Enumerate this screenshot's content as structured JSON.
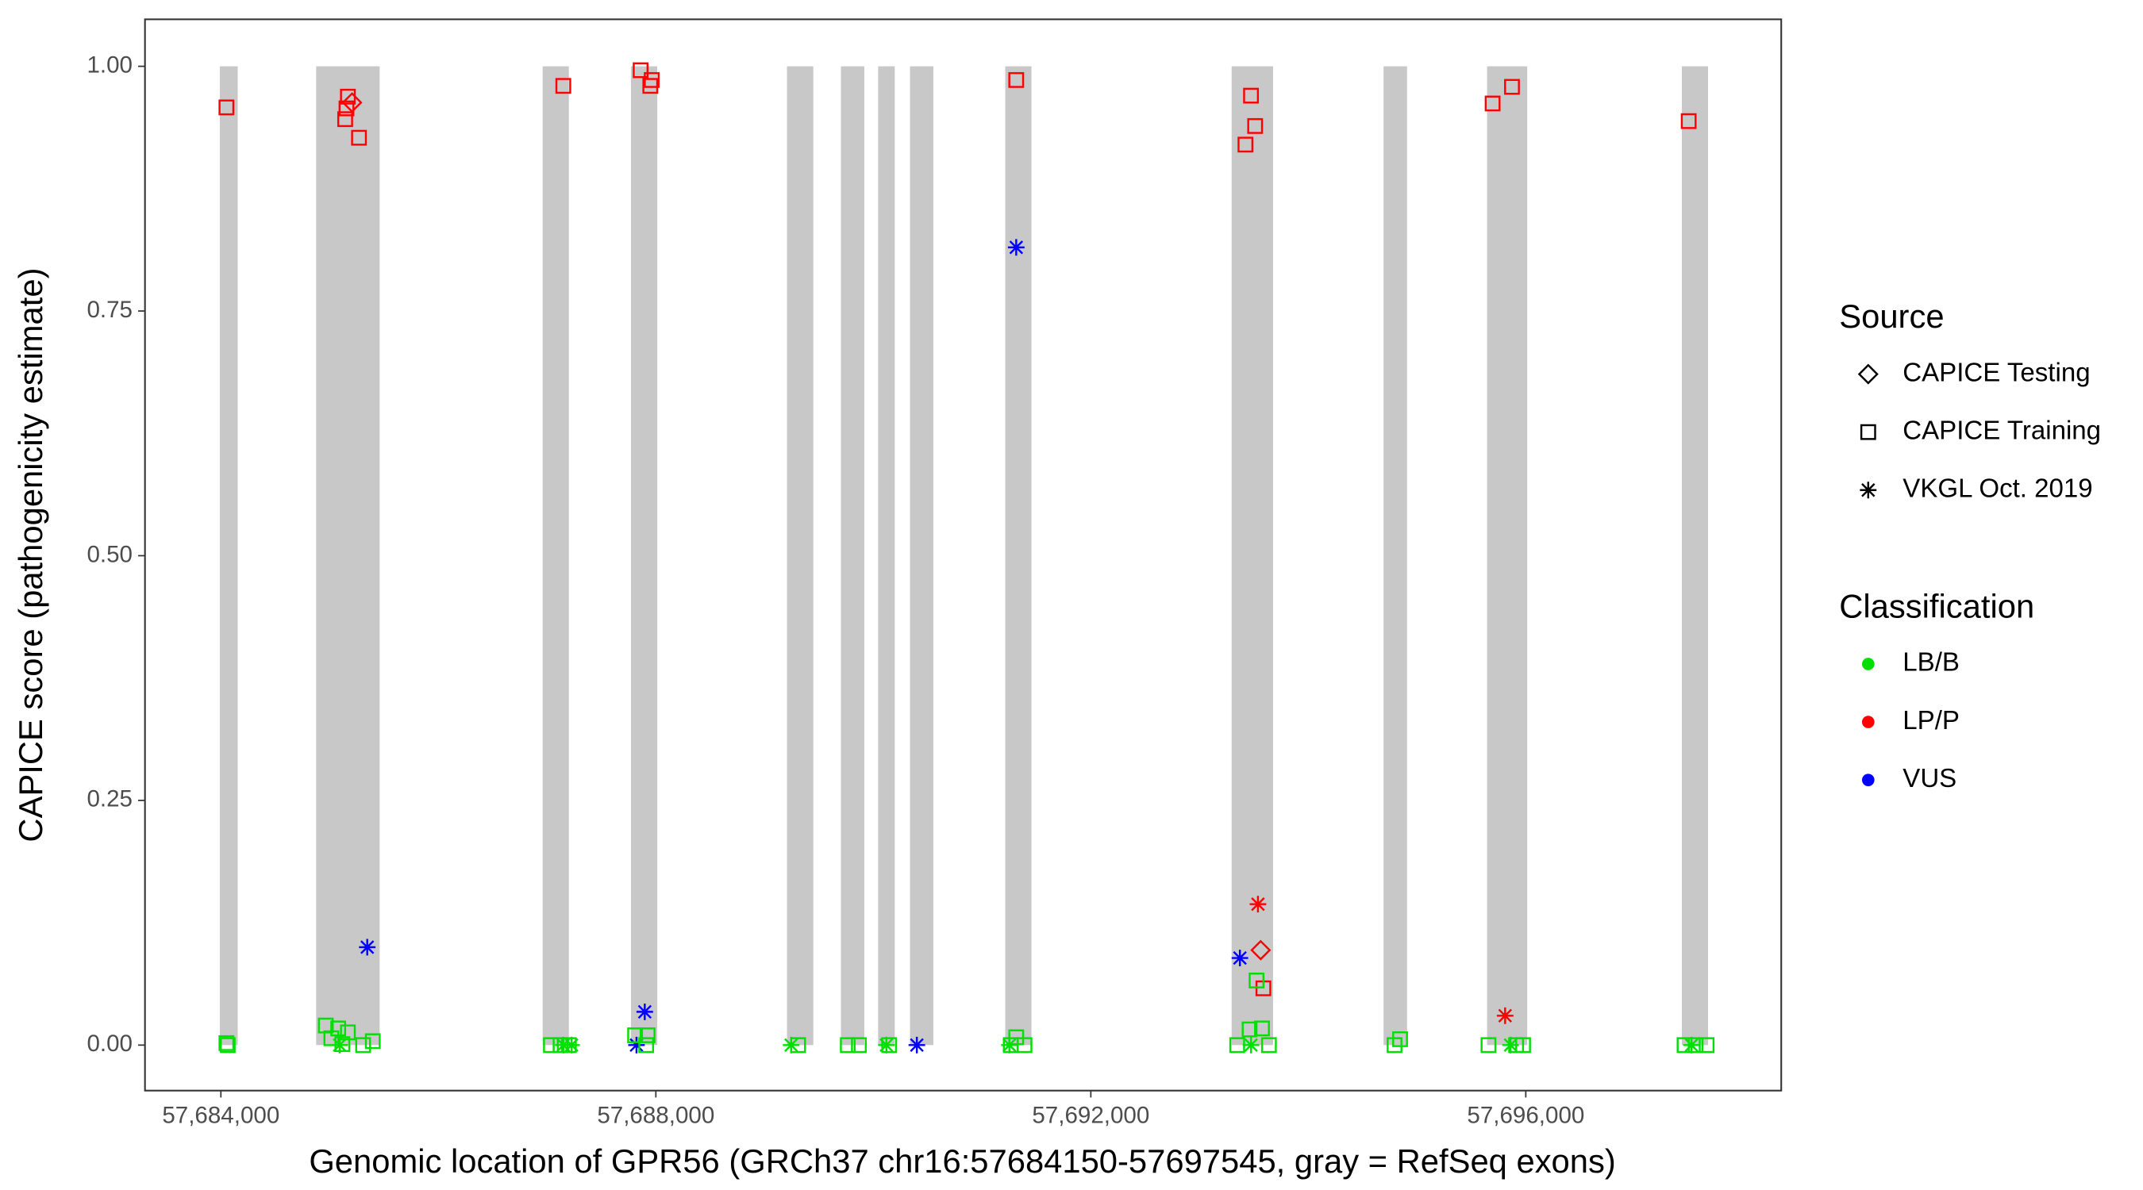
{
  "chart_data": {
    "type": "scatter",
    "x_label": "Genomic location of GPR56 (GRCh37 chr16:57684150-57697545, gray = RefSeq exons)",
    "y_label": "CAPICE score (pathogenicity estimate)",
    "xlim": [
      57683302,
      57698349
    ],
    "ylim": [
      -0.0465,
      1.048
    ],
    "xticks": [
      {
        "value": 57684000,
        "label": "57,684,000"
      },
      {
        "value": 57688000,
        "label": "57,688,000"
      },
      {
        "value": 57692000,
        "label": "57,692,000"
      },
      {
        "value": 57696000,
        "label": "57,696,000"
      }
    ],
    "yticks": [
      {
        "value": 0,
        "label": "0.00"
      },
      {
        "value": 0.25,
        "label": "0.25"
      },
      {
        "value": 0.5,
        "label": "0.50"
      },
      {
        "value": 0.75,
        "label": "0.75"
      },
      {
        "value": 1,
        "label": "1.00"
      }
    ],
    "exon_color": "#c8c8c8",
    "exons": [
      [
        57683990,
        57684155
      ],
      [
        57684876,
        57685460
      ],
      [
        57686959,
        57687200
      ],
      [
        57687771,
        57688013
      ],
      [
        57689206,
        57689448
      ],
      [
        57689702,
        57689917
      ],
      [
        57690044,
        57690197
      ],
      [
        57690337,
        57690552
      ],
      [
        57691213,
        57691454
      ],
      [
        57693295,
        57693676
      ],
      [
        57694692,
        57694908
      ],
      [
        57695644,
        57696013
      ],
      [
        57697435,
        57697676
      ]
    ],
    "source_legend": {
      "title": "Source",
      "items": [
        {
          "name": "CAPICE Testing",
          "shape": "diamond"
        },
        {
          "name": "CAPICE Training",
          "shape": "square"
        },
        {
          "name": "VKGL Oct. 2019",
          "shape": "asterisk"
        }
      ]
    },
    "class_legend": {
      "title": "Classification",
      "items": [
        {
          "name": "LB/B",
          "color": "#00e000"
        },
        {
          "name": "LP/P",
          "color": "#ff0000"
        },
        {
          "name": "VUS",
          "color": "#0000ff"
        }
      ]
    },
    "series": [
      {
        "shape": "square",
        "color": "#ff0000",
        "x": [
          57684051,
          57685168,
          57685155,
          57685143,
          57685270,
          57687149,
          57687860,
          57687949,
          57687962,
          57691314,
          57693473,
          57693511,
          57693422,
          57695695,
          57695873,
          57697498,
          57693587
        ],
        "values": [
          0.958,
          0.969,
          0.957,
          0.946,
          0.927,
          0.98,
          0.996,
          0.98,
          0.986,
          0.986,
          0.97,
          0.939,
          0.92,
          0.962,
          0.979,
          0.944,
          0.058
        ]
      },
      {
        "shape": "diamond",
        "color": "#ff0000",
        "x": [
          57685206,
          57693562
        ],
        "values": [
          0.963,
          0.097
        ]
      },
      {
        "shape": "asterisk",
        "color": "#ff0000",
        "x": [
          57693537,
          57695810
        ],
        "values": [
          0.144,
          0.03
        ]
      },
      {
        "shape": "asterisk",
        "color": "#0000ff",
        "x": [
          57685346,
          57691314,
          57687898,
          57687822,
          57690400,
          57693371
        ],
        "values": [
          0.1,
          0.815,
          0.034,
          0,
          0,
          0.089
        ]
      },
      {
        "shape": "square",
        "color": "#00e000",
        "x": [
          57684051,
          57684063,
          57684965,
          57685079,
          57685016,
          57685168,
          57685117,
          57685308,
          57685397,
          57687035,
          57687124,
          57687200,
          57687809,
          57687911,
          57687924,
          57689308,
          57689765,
          57689867,
          57690146,
          57691264,
          57691314,
          57691390,
          57693346,
          57693460,
          57693524,
          57693574,
          57693638,
          57694793,
          57694844,
          57695657,
          57695911,
          57695975,
          57697460,
          57697562,
          57697663
        ],
        "values": [
          0.002,
          0,
          0.02,
          0.017,
          0.007,
          0.013,
          0.001,
          0,
          0.004,
          0,
          0,
          0,
          0.01,
          0,
          0.01,
          0,
          0,
          0,
          0,
          0,
          0.008,
          0,
          0,
          0.016,
          0.066,
          0.017,
          0,
          0,
          0.006,
          0,
          0,
          0,
          0,
          0,
          0
        ]
      },
      {
        "shape": "asterisk",
        "color": "#00e000",
        "x": [
          57685092,
          57687149,
          57687225,
          57689244,
          57690120,
          57691251,
          57693473,
          57695860,
          57697524
        ],
        "values": [
          0,
          0,
          0,
          0,
          0,
          0,
          0,
          0,
          0
        ]
      }
    ]
  }
}
